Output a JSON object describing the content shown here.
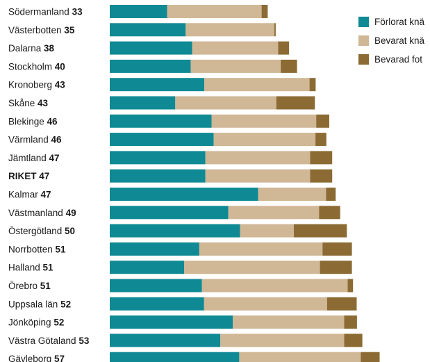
{
  "chart_data": {
    "type": "bar",
    "stacked": true,
    "orientation": "horizontal",
    "categories": [
      "Södermanland",
      "Västerbotten",
      "Dalarna",
      "Stockholm",
      "Kronoberg",
      "Skåne",
      "Blekinge",
      "Värmland",
      "Jämtland",
      "RIKET",
      "Kalmar",
      "Västmanland",
      "Östergötland",
      "Norrbotten",
      "Halland",
      "Örebro",
      "Uppsala län",
      "Jönköping",
      "Västra Götaland",
      "Gävleborg"
    ],
    "category_values": [
      "33",
      "35",
      "38",
      "40",
      "43",
      "43",
      "46",
      "46",
      "47",
      "47",
      "47",
      "49",
      "50",
      "51",
      "51",
      "51",
      "52",
      "52",
      "53",
      "57"
    ],
    "highlight": "RIKET",
    "series": [
      {
        "name": "Förlorat knä",
        "color": "#0f8a94",
        "values": [
          21.5,
          28.5,
          30.9,
          30.4,
          35.5,
          24.6,
          38.2,
          39.0,
          35.9,
          35.9,
          55.7,
          44.5,
          48.9,
          33.6,
          27.9,
          34.6,
          35.4,
          46.2,
          41.5,
          48.6
        ]
      },
      {
        "name": "Bevarat knä",
        "color": "#d0b795",
        "values": [
          35.5,
          33.3,
          32.3,
          33.8,
          39.5,
          37.9,
          39.3,
          38.2,
          39.3,
          39.3,
          25.5,
          34.1,
          20.2,
          46.3,
          51.0,
          54.7,
          46.2,
          41.8,
          46.5,
          45.6
        ]
      },
      {
        "name": "Bevarad fot",
        "color": "#8b6b33",
        "values": [
          2.3,
          0.5,
          4.1,
          6.1,
          2.3,
          14.5,
          4.9,
          4.1,
          8.3,
          8.3,
          3.6,
          7.9,
          19.9,
          11.0,
          12.0,
          2.0,
          11.1,
          4.8,
          6.8,
          7.1
        ]
      }
    ],
    "legend_position": "top-right",
    "grid": false
  }
}
